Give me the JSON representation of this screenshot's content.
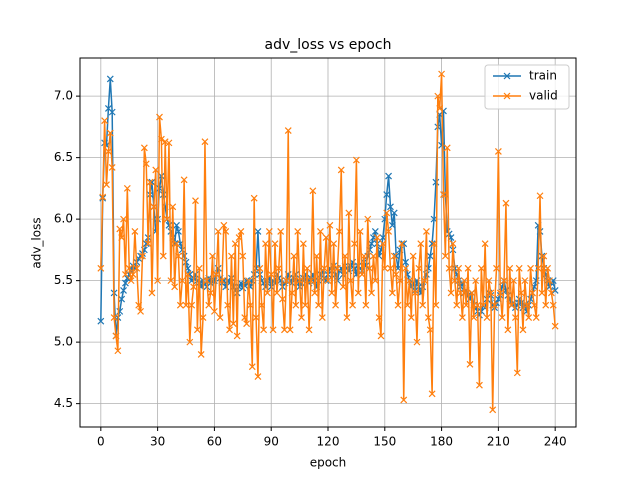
{
  "chart_data": {
    "type": "line",
    "title": "adv_loss vs epoch",
    "x_label": "epoch",
    "y_label": "adv_loss",
    "x": [
      0,
      1,
      2,
      3,
      4,
      5,
      6,
      7,
      8,
      9,
      10,
      11,
      12,
      13,
      14,
      15,
      16,
      17,
      18,
      19,
      20,
      21,
      22,
      23,
      24,
      25,
      26,
      27,
      28,
      29,
      30,
      31,
      32,
      33,
      34,
      35,
      36,
      37,
      38,
      39,
      40,
      41,
      42,
      43,
      44,
      45,
      46,
      47,
      48,
      49,
      50,
      51,
      52,
      53,
      54,
      55,
      56,
      57,
      58,
      59,
      60,
      61,
      62,
      63,
      64,
      65,
      66,
      67,
      68,
      69,
      70,
      71,
      72,
      73,
      74,
      75,
      76,
      77,
      78,
      79,
      80,
      81,
      82,
      83,
      84,
      85,
      86,
      87,
      88,
      89,
      90,
      91,
      92,
      93,
      94,
      95,
      96,
      97,
      98,
      99,
      100,
      101,
      102,
      103,
      104,
      105,
      106,
      107,
      108,
      109,
      110,
      111,
      112,
      113,
      114,
      115,
      116,
      117,
      118,
      119,
      120,
      121,
      122,
      123,
      124,
      125,
      126,
      127,
      128,
      129,
      130,
      131,
      132,
      133,
      134,
      135,
      136,
      137,
      138,
      139,
      140,
      141,
      142,
      143,
      144,
      145,
      146,
      147,
      148,
      149,
      150,
      151,
      152,
      153,
      154,
      155,
      156,
      157,
      158,
      159,
      160,
      161,
      162,
      163,
      164,
      165,
      166,
      167,
      168,
      169,
      170,
      171,
      172,
      173,
      174,
      175,
      176,
      177,
      178,
      179,
      180,
      181,
      182,
      183,
      184,
      185,
      186,
      187,
      188,
      189,
      190,
      191,
      192,
      193,
      194,
      195,
      196,
      197,
      198,
      199,
      200,
      201,
      202,
      203,
      204,
      205,
      206,
      207,
      208,
      209,
      210,
      211,
      212,
      213,
      214,
      215,
      216,
      217,
      218,
      219,
      220,
      221,
      222,
      223,
      224,
      225,
      226,
      227,
      228,
      229,
      230,
      231,
      232,
      233,
      234,
      235,
      236,
      237,
      238,
      239,
      240
    ],
    "series": [
      {
        "name": "train",
        "color": "#1f77b4",
        "values": [
          5.17,
          6.17,
          6.62,
          6.6,
          6.9,
          7.14,
          6.87,
          5.4,
          5.05,
          5.2,
          5.25,
          5.35,
          5.42,
          5.48,
          5.52,
          5.55,
          5.58,
          5.62,
          5.6,
          5.65,
          5.68,
          5.7,
          5.72,
          5.75,
          5.8,
          5.85,
          6.2,
          6.3,
          6.1,
          5.9,
          6.0,
          6.25,
          6.35,
          6.2,
          6.1,
          6.0,
          5.95,
          5.9,
          5.85,
          5.8,
          5.95,
          5.9,
          5.8,
          5.75,
          5.7,
          5.65,
          5.6,
          5.55,
          5.5,
          5.52,
          5.55,
          5.5,
          5.48,
          5.45,
          5.5,
          5.47,
          5.45,
          5.52,
          5.48,
          5.5,
          5.5,
          5.55,
          5.6,
          5.52,
          5.48,
          5.5,
          5.45,
          5.5,
          5.48,
          5.52,
          5.45,
          5.42,
          5.4,
          5.45,
          5.48,
          5.44,
          5.46,
          5.5,
          5.48,
          5.45,
          5.5,
          5.55,
          5.6,
          5.9,
          5.55,
          5.5,
          5.48,
          5.45,
          5.5,
          5.52,
          5.45,
          5.5,
          5.48,
          5.55,
          5.52,
          5.5,
          5.45,
          5.48,
          5.5,
          5.55,
          5.5,
          5.48,
          5.52,
          5.55,
          5.5,
          5.45,
          5.48,
          5.52,
          5.55,
          5.5,
          5.48,
          5.52,
          5.55,
          5.5,
          5.45,
          5.5,
          5.55,
          5.58,
          5.52,
          5.5,
          5.55,
          5.6,
          5.58,
          5.62,
          5.55,
          5.5,
          5.58,
          5.6,
          5.55,
          5.62,
          5.6,
          5.58,
          5.62,
          5.65,
          5.6,
          5.55,
          5.62,
          5.6,
          5.58,
          5.65,
          5.62,
          5.7,
          5.75,
          5.8,
          5.85,
          5.9,
          5.8,
          5.7,
          5.75,
          5.85,
          6.0,
          6.2,
          6.35,
          6.1,
          5.95,
          6.05,
          5.7,
          5.6,
          5.75,
          5.8,
          5.8,
          5.65,
          5.55,
          5.5,
          5.45,
          5.48,
          5.42,
          5.5,
          5.45,
          5.4,
          5.45,
          5.5,
          5.55,
          5.6,
          5.7,
          5.8,
          6.0,
          6.3,
          6.75,
          6.85,
          6.6,
          6.88,
          6.2,
          5.9,
          5.88,
          5.85,
          5.75,
          5.6,
          5.55,
          5.5,
          5.45,
          5.48,
          5.4,
          5.42,
          5.38,
          5.35,
          5.4,
          5.3,
          5.28,
          5.25,
          5.22,
          5.25,
          5.3,
          5.28,
          5.35,
          5.4,
          5.38,
          5.3,
          5.28,
          5.32,
          5.35,
          5.38,
          5.45,
          5.5,
          5.42,
          5.38,
          5.35,
          5.3,
          5.32,
          5.28,
          5.3,
          5.35,
          5.32,
          5.28,
          5.3,
          5.25,
          5.3,
          5.35,
          5.4,
          5.45,
          5.5,
          5.95,
          5.9,
          5.7,
          5.6,
          5.55,
          5.5,
          5.45,
          5.48,
          5.5,
          5.42
        ]
      },
      {
        "name": "valid",
        "color": "#ff7f0e",
        "values": [
          5.6,
          6.18,
          6.8,
          6.28,
          6.55,
          6.7,
          6.42,
          5.2,
          5.05,
          4.93,
          5.92,
          5.85,
          6.0,
          5.55,
          6.25,
          5.6,
          5.5,
          5.55,
          5.9,
          5.6,
          5.3,
          5.25,
          5.7,
          6.58,
          6.45,
          5.8,
          6.3,
          5.4,
          6.1,
          6.4,
          5.5,
          6.83,
          6.65,
          5.7,
          6.63,
          6.0,
          6.62,
          5.5,
          6.1,
          5.45,
          5.8,
          5.7,
          5.3,
          5.5,
          6.32,
          5.3,
          5.55,
          5.0,
          5.3,
          5.45,
          6.15,
          5.1,
          5.6,
          4.9,
          5.2,
          6.63,
          5.5,
          5.3,
          5.4,
          5.7,
          5.25,
          5.55,
          5.9,
          5.2,
          5.5,
          5.95,
          5.9,
          5.3,
          5.1,
          5.7,
          5.15,
          5.8,
          5.05,
          5.85,
          5.9,
          5.7,
          5.2,
          5.15,
          5.5,
          5.3,
          4.8,
          6.17,
          5.2,
          4.72,
          5.6,
          5.3,
          5.1,
          5.8,
          5.4,
          5.9,
          5.55,
          5.1,
          5.8,
          5.4,
          5.6,
          5.9,
          5.35,
          5.1,
          5.5,
          6.72,
          5.1,
          5.4,
          5.7,
          5.3,
          5.9,
          5.5,
          5.2,
          5.8,
          5.3,
          5.6,
          5.1,
          5.5,
          6.23,
          5.4,
          5.7,
          5.3,
          5.9,
          5.2,
          5.6,
          5.85,
          5.5,
          5.95,
          5.4,
          5.8,
          5.3,
          5.6,
          5.9,
          6.4,
          5.45,
          5.7,
          5.2,
          6.05,
          5.5,
          5.3,
          5.8,
          6.48,
          5.4,
          5.9,
          5.55,
          5.7,
          5.3,
          6.0,
          5.6,
          5.4,
          5.7,
          5.5,
          5.85,
          5.2,
          5.05,
          5.8,
          5.6,
          6.05,
          5.9,
          5.6,
          5.4,
          5.7,
          5.55,
          5.3,
          5.5,
          5.8,
          4.53,
          5.6,
          5.3,
          5.5,
          5.2,
          5.7,
          5.4,
          5.0,
          5.6,
          5.8,
          5.3,
          5.5,
          5.9,
          5.2,
          5.1,
          4.58,
          5.8,
          5.3,
          7.0,
          6.9,
          7.18,
          6.2,
          5.7,
          6.58,
          5.6,
          5.4,
          5.8,
          5.5,
          5.3,
          5.6,
          5.4,
          5.2,
          5.5,
          5.3,
          5.6,
          4.82,
          5.4,
          5.2,
          5.5,
          5.3,
          4.65,
          5.6,
          5.3,
          5.8,
          5.2,
          5.5,
          5.4,
          4.45,
          5.3,
          5.6,
          6.55,
          5.4,
          5.2,
          5.5,
          6.13,
          5.1,
          5.6,
          5.3,
          5.5,
          5.2,
          4.75,
          5.6,
          5.4,
          5.1,
          5.5,
          5.3,
          5.2,
          5.6,
          5.4,
          5.3,
          5.2,
          5.6,
          6.19,
          5.4,
          5.7,
          5.3,
          5.6,
          5.5,
          5.4,
          5.3,
          5.13
        ]
      }
    ],
    "xlim": [
      -11,
      251
    ],
    "xticks": [
      0,
      30,
      60,
      90,
      120,
      150,
      180,
      210,
      240
    ],
    "ylim": [
      4.31,
      7.31
    ],
    "yticks": [
      4.5,
      {
        "value": 5,
        "label": "5.0"
      },
      5.5,
      {
        "value": 6,
        "label": "6.0"
      },
      6.5,
      {
        "value": 7,
        "label": "7.0"
      }
    ],
    "grid": true,
    "legend": "upper right"
  }
}
